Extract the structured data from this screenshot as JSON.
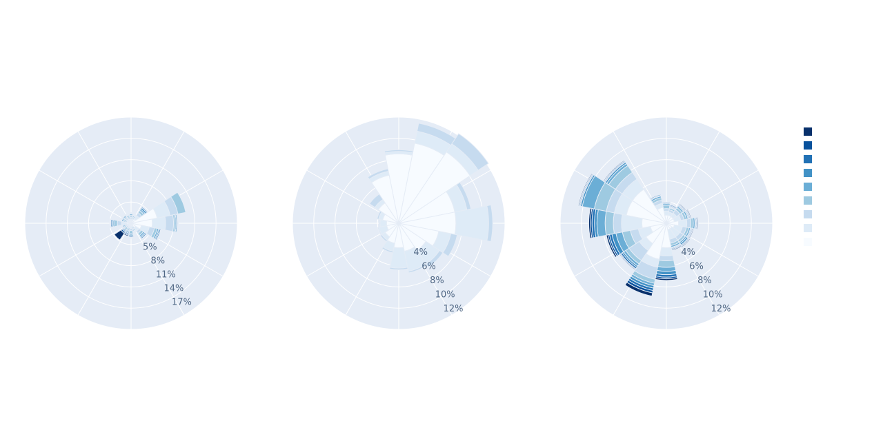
{
  "chart_data": [
    {
      "type": "barpolar",
      "title": "",
      "angularaxis": {
        "direction": "counterclockwise",
        "rotation_deg": 90,
        "grid": true,
        "spokes": 12
      },
      "radialaxis": {
        "range": [
          0,
          20
        ],
        "tick_values": [
          5,
          8,
          11,
          14,
          17
        ],
        "tick_labels": [
          "5%",
          "8%",
          "11%",
          "14%",
          "17%"
        ],
        "tick_angle_deg": -60
      },
      "directions_deg": [
        0,
        22.5,
        45,
        67.5,
        90,
        112.5,
        135,
        157.5,
        180,
        202.5,
        225,
        247.5,
        270,
        292.5,
        315,
        337.5
      ],
      "series": [
        {
          "color": "#f7fbff",
          "values": [
            0.5,
            0.5,
            1.0,
            5.0,
            4.0,
            2.0,
            1.0,
            0.5,
            0.6,
            0.5,
            0.5,
            0.5,
            0.8,
            0.5,
            0.5,
            0.5
          ]
        },
        {
          "color": "#deebf7",
          "values": [
            0.3,
            0.3,
            0.8,
            2.5,
            2.5,
            1.5,
            0.8,
            0.3,
            0.4,
            0.4,
            0.3,
            0.3,
            1.0,
            0.3,
            0.4,
            0.3
          ]
        },
        {
          "color": "#c6dbef",
          "values": [
            0.3,
            0.2,
            0.6,
            1.5,
            1.5,
            1.0,
            0.5,
            0.3,
            0.4,
            0.3,
            0.3,
            0.2,
            0.8,
            0.3,
            0.3,
            0.3
          ]
        },
        {
          "color": "#9ecae1",
          "values": [
            0.2,
            0.2,
            0.5,
            1.5,
            0.3,
            0.5,
            0.5,
            0.2,
            0.5,
            0.3,
            0.3,
            0.2,
            0.5,
            0.3,
            0.2,
            0.2
          ]
        },
        {
          "color": "#6baed6",
          "values": [
            0.2,
            0.2,
            0.3,
            0.0,
            0.2,
            0.3,
            0.3,
            0.2,
            0.3,
            0.2,
            0.2,
            0.2,
            0.3,
            0.2,
            0.2,
            0.2
          ]
        },
        {
          "color": "#4292c6",
          "values": [
            0.2,
            0.1,
            0.3,
            0.0,
            0.2,
            0.2,
            0.2,
            0.1,
            0.2,
            0.2,
            0.2,
            0.2,
            0.2,
            0.2,
            0.2,
            0.1
          ]
        },
        {
          "color": "#2171b5",
          "values": [
            0.1,
            0.1,
            0.2,
            0.0,
            0.1,
            0.2,
            0.2,
            0.1,
            0.2,
            0.2,
            0.2,
            0.1,
            0.2,
            0.1,
            0.1,
            0.1
          ]
        },
        {
          "color": "#08519c",
          "values": [
            0.1,
            0.1,
            0.1,
            0.0,
            0.1,
            0.1,
            0.1,
            0.1,
            0.1,
            0.2,
            0.3,
            0.1,
            0.1,
            0.1,
            0.1,
            0.1
          ]
        },
        {
          "color": "#08306b",
          "values": [
            0.1,
            0.1,
            0.1,
            0.0,
            0.0,
            0.1,
            0.1,
            0.1,
            0.1,
            0.2,
            1.5,
            0.1,
            0.1,
            0.1,
            0.1,
            0.1
          ]
        }
      ]
    },
    {
      "type": "barpolar",
      "title": "",
      "angularaxis": {
        "direction": "counterclockwise",
        "rotation_deg": 90,
        "grid": true,
        "spokes": 12
      },
      "radialaxis": {
        "range": [
          0,
          13
        ],
        "tick_values": [
          4,
          6,
          8,
          10,
          12
        ],
        "tick_labels": [
          "4%",
          "6%",
          "8%",
          "10%",
          "12%"
        ],
        "tick_angle_deg": -60
      },
      "directions_deg": [
        0,
        22.5,
        45,
        67.5,
        90,
        112.5,
        135,
        157.5,
        180,
        202.5,
        225,
        247.5,
        270,
        292.5,
        315,
        337.5
      ],
      "series": [
        {
          "color": "#f7fbff",
          "values": [
            8.5,
            10.0,
            10.5,
            7.0,
            7.0,
            5.0,
            4.0,
            3.5,
            3.0,
            2.5,
            2.0,
            1.5,
            1.5,
            2.0,
            3.0,
            6.0
          ]
        },
        {
          "color": "#deebf7",
          "values": [
            0.3,
            1.5,
            1.2,
            1.5,
            4.0,
            1.5,
            2.0,
            2.5,
            2.5,
            1.0,
            0.5,
            1.0,
            0.8,
            0.5,
            0.5,
            0.5
          ]
        },
        {
          "color": "#c6dbef",
          "values": [
            0.2,
            1.0,
            1.5,
            0.5,
            0.5,
            0.8,
            0.5,
            0.2,
            0.2,
            0.2,
            0.2,
            0.1,
            0.1,
            0.2,
            0.8,
            0.3
          ]
        },
        {
          "color": "#9ecae1",
          "values": [
            0.0,
            0.0,
            0.0,
            0.0,
            0.0,
            0.0,
            0.0,
            0.0,
            0.0,
            0.0,
            0.0,
            0.0,
            0.0,
            0.0,
            0.0,
            0.0
          ]
        },
        {
          "color": "#6baed6",
          "values": [
            0.0,
            0.0,
            0.0,
            0.0,
            0.0,
            0.0,
            0.0,
            0.0,
            0.0,
            0.0,
            0.0,
            0.0,
            0.0,
            0.0,
            0.0,
            0.0
          ]
        },
        {
          "color": "#4292c6",
          "values": [
            0.0,
            0.0,
            0.0,
            0.0,
            0.0,
            0.0,
            0.0,
            0.0,
            0.0,
            0.0,
            0.0,
            0.0,
            0.0,
            0.0,
            0.0,
            0.0
          ]
        },
        {
          "color": "#2171b5",
          "values": [
            0.0,
            0.0,
            0.0,
            0.0,
            0.0,
            0.0,
            0.0,
            0.0,
            0.0,
            0.0,
            0.0,
            0.0,
            0.0,
            0.0,
            0.0,
            0.0
          ]
        },
        {
          "color": "#08519c",
          "values": [
            0.0,
            0.0,
            0.0,
            0.0,
            0.0,
            0.0,
            0.0,
            0.0,
            0.0,
            0.0,
            0.0,
            0.0,
            0.0,
            0.0,
            0.0,
            0.0
          ]
        },
        {
          "color": "#08306b",
          "values": [
            0.0,
            0.0,
            0.0,
            0.0,
            0.0,
            0.0,
            0.0,
            0.0,
            0.0,
            0.0,
            0.0,
            0.0,
            0.0,
            0.0,
            0.0,
            0.0
          ]
        }
      ]
    },
    {
      "type": "barpolar",
      "title": "",
      "angularaxis": {
        "direction": "counterclockwise",
        "rotation_deg": 90,
        "grid": true,
        "spokes": 12
      },
      "radialaxis": {
        "range": [
          0,
          13
        ],
        "tick_values": [
          4,
          6,
          8,
          10,
          12
        ],
        "tick_labels": [
          "4%",
          "6%",
          "8%",
          "10%",
          "12%"
        ],
        "tick_angle_deg": -60
      },
      "directions_deg": [
        0,
        22.5,
        45,
        67.5,
        90,
        112.5,
        135,
        157.5,
        180,
        202.5,
        225,
        247.5,
        270,
        292.5,
        315,
        337.5
      ],
      "series": [
        {
          "color": "#f7fbff",
          "values": [
            1.0,
            1.0,
            1.0,
            1.0,
            1.5,
            1.0,
            0.8,
            0.8,
            3.0,
            4.5,
            3.0,
            2.0,
            3.0,
            5.0,
            5.0,
            2.0
          ]
        },
        {
          "color": "#deebf7",
          "values": [
            0.5,
            0.4,
            0.5,
            0.8,
            1.0,
            1.0,
            1.2,
            1.2,
            1.0,
            1.0,
            1.0,
            1.5,
            2.5,
            1.5,
            1.5,
            0.5
          ]
        },
        {
          "color": "#c6dbef",
          "values": [
            0.3,
            0.3,
            0.5,
            0.4,
            0.5,
            0.5,
            0.5,
            0.5,
            0.6,
            1.5,
            1.5,
            1.0,
            1.0,
            1.0,
            1.0,
            0.4
          ]
        },
        {
          "color": "#9ecae1",
          "values": [
            0.4,
            0.2,
            0.3,
            0.3,
            0.3,
            0.3,
            0.3,
            0.3,
            0.8,
            0.5,
            0.5,
            1.0,
            1.0,
            1.5,
            1.0,
            0.3
          ]
        },
        {
          "color": "#6baed6",
          "values": [
            0.2,
            0.1,
            0.2,
            0.2,
            0.2,
            0.2,
            0.2,
            0.2,
            0.5,
            0.3,
            0.3,
            0.8,
            1.0,
            1.5,
            0.3,
            0.2
          ]
        },
        {
          "color": "#4292c6",
          "values": [
            0.1,
            0.1,
            0.1,
            0.1,
            0.1,
            0.1,
            0.2,
            0.1,
            0.4,
            0.3,
            0.2,
            0.5,
            0.3,
            0.2,
            0.2,
            0.1
          ]
        },
        {
          "color": "#2171b5",
          "values": [
            0.1,
            0.1,
            0.1,
            0.1,
            0.1,
            0.1,
            0.1,
            0.1,
            0.3,
            0.3,
            0.2,
            0.3,
            0.3,
            0.1,
            0.1,
            0.1
          ]
        },
        {
          "color": "#08519c",
          "values": [
            0.0,
            0.1,
            0.1,
            0.1,
            0.1,
            0.1,
            0.1,
            0.1,
            0.2,
            0.3,
            0.1,
            0.2,
            0.2,
            0.1,
            0.1,
            0.0
          ]
        },
        {
          "color": "#08306b",
          "values": [
            0.0,
            0.0,
            0.1,
            0.1,
            0.1,
            0.1,
            0.1,
            0.1,
            0.2,
            0.4,
            0.1,
            0.2,
            0.2,
            0.1,
            0.1,
            0.0
          ]
        }
      ]
    }
  ],
  "legend": {
    "placement": "right",
    "swatches": [
      "#08306b",
      "#08519c",
      "#2171b5",
      "#4292c6",
      "#6baed6",
      "#9ecae1",
      "#c6dbef",
      "#deebf7",
      "#f7fbff"
    ]
  },
  "theme": {
    "polar_bg": "#e5ecf6",
    "grid_color": "#ffffff",
    "tick_font_color": "#506784",
    "bar_outline": "#e5ecf6"
  }
}
